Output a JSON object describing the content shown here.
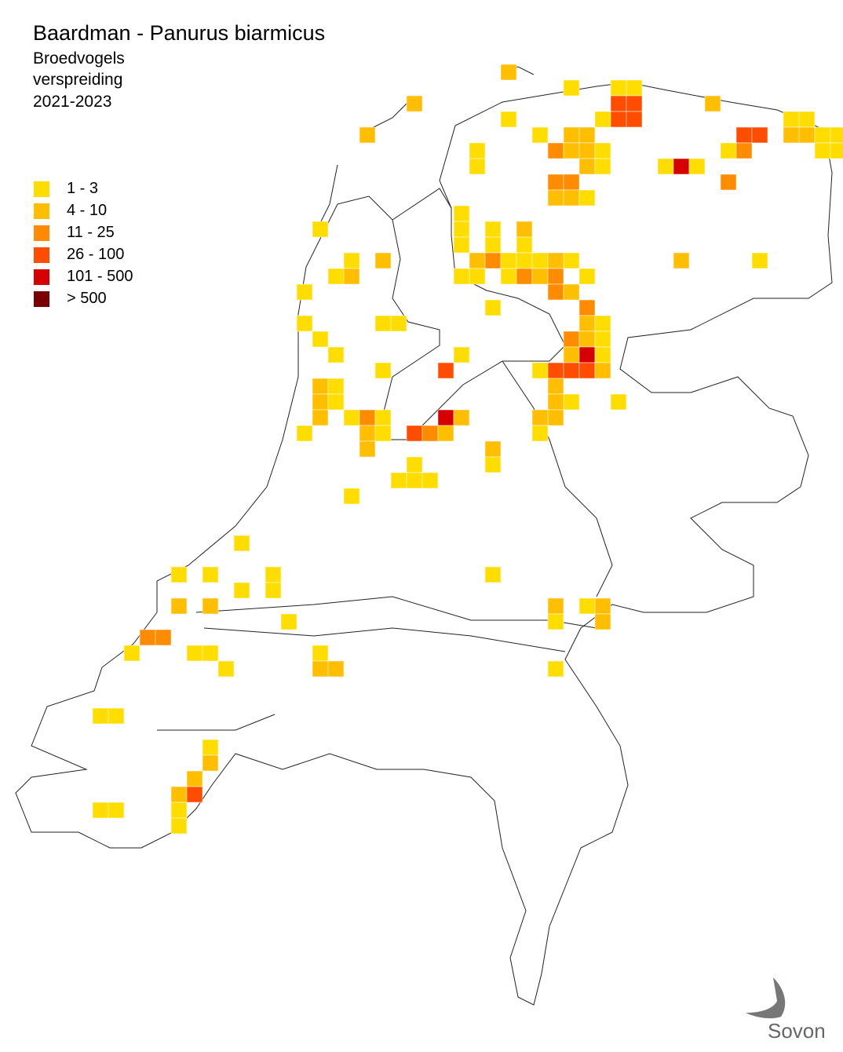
{
  "header": {
    "title": "Baardman - Panurus biarmicus",
    "subtitle_lines": [
      "Broedvogels",
      "verspreiding",
      "2021-2023"
    ]
  },
  "legend": {
    "items": [
      {
        "label": "1 - 3",
        "color": "#ffdd00"
      },
      {
        "label": "4 - 10",
        "color": "#ffbf00"
      },
      {
        "label": "11 - 25",
        "color": "#ff8c00"
      },
      {
        "label": "26 - 100",
        "color": "#ff4d00"
      },
      {
        "label": "101 - 500",
        "color": "#d60000"
      },
      {
        "label": "> 500",
        "color": "#7a0000"
      }
    ]
  },
  "logo": {
    "text": "Sovon"
  }
}
